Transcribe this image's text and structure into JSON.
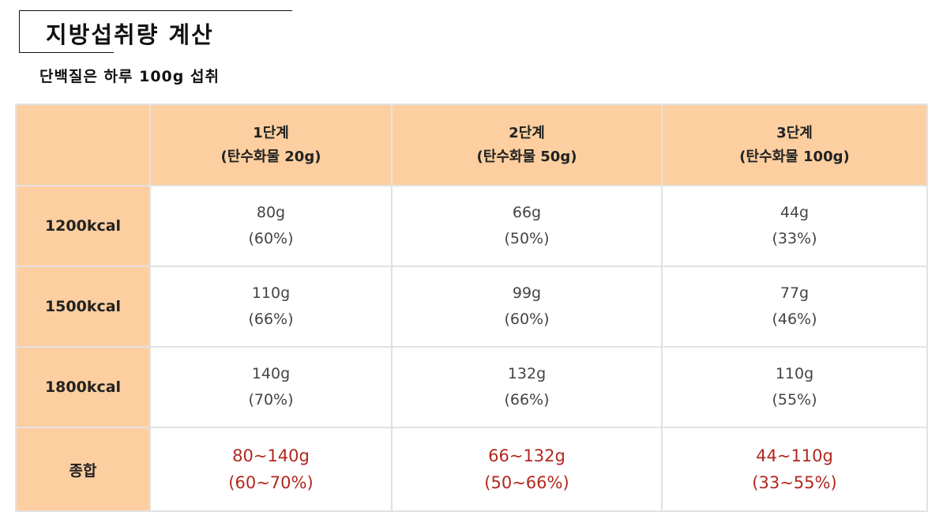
{
  "title": "지방섭취량 계산",
  "subtitle": "단백질은 하루 100g 섭취",
  "table": {
    "corner": "",
    "columns": [
      {
        "line1": "1단계",
        "line2": "(탄수화물 20g)"
      },
      {
        "line1": "2단계",
        "line2": "(탄수화물 50g)"
      },
      {
        "line1": "3단계",
        "line2": "(탄수화물 100g)"
      }
    ],
    "rows": [
      {
        "label": "1200kcal",
        "cells": [
          {
            "amount": "80g",
            "pct": "(60%)"
          },
          {
            "amount": "66g",
            "pct": "(50%)"
          },
          {
            "amount": "44g",
            "pct": "(33%)"
          }
        ]
      },
      {
        "label": "1500kcal",
        "cells": [
          {
            "amount": "110g",
            "pct": "(66%)"
          },
          {
            "amount": "99g",
            "pct": "(60%)"
          },
          {
            "amount": "77g",
            "pct": "(46%)"
          }
        ]
      },
      {
        "label": "1800kcal",
        "cells": [
          {
            "amount": "140g",
            "pct": "(70%)"
          },
          {
            "amount": "132g",
            "pct": "(66%)"
          },
          {
            "amount": "110g",
            "pct": "(55%)"
          }
        ]
      }
    ],
    "summary": {
      "label": "종합",
      "cells": [
        {
          "amount": "80~140g",
          "pct": "(60~70%)"
        },
        {
          "amount": "66~132g",
          "pct": "(50~66%)"
        },
        {
          "amount": "44~110g",
          "pct": "(33~55%)"
        }
      ]
    }
  },
  "colors": {
    "header_bg": "#fdcfa0",
    "summary_text": "#b2271f",
    "border": "#e2e2e2"
  }
}
